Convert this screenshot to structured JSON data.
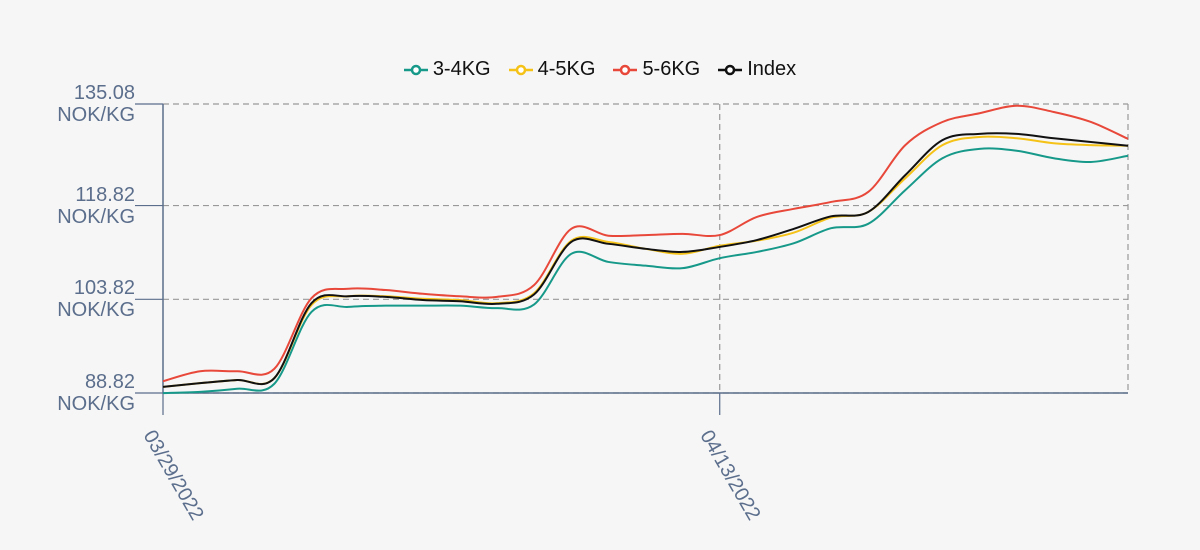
{
  "chart_data": {
    "type": "line",
    "x": [
      "03/29/2022",
      "03/30/2022",
      "03/31/2022",
      "04/01/2022",
      "04/02/2022",
      "04/03/2022",
      "04/04/2022",
      "04/05/2022",
      "04/06/2022",
      "04/07/2022",
      "04/08/2022",
      "04/09/2022",
      "04/10/2022",
      "04/11/2022",
      "04/12/2022",
      "04/13/2022",
      "04/14/2022",
      "04/15/2022",
      "04/16/2022",
      "04/17/2022",
      "04/18/2022",
      "04/19/2022",
      "04/20/2022",
      "04/21/2022",
      "04/22/2022",
      "04/23/2022",
      "04/24/2022"
    ],
    "series": [
      {
        "name": "3-4KG",
        "color": "#17998a",
        "values": [
          88.8,
          89.0,
          89.5,
          90.3,
          101.8,
          102.6,
          102.8,
          102.8,
          102.8,
          102.4,
          103.0,
          111.1,
          109.8,
          109.2,
          108.8,
          110.4,
          111.4,
          112.8,
          115.2,
          115.9,
          121.3,
          126.4,
          127.9,
          127.6,
          126.4,
          125.8,
          126.8
        ]
      },
      {
        "name": "4-5KG",
        "color": "#f5c218",
        "values": [
          89.8,
          90.4,
          90.9,
          91.2,
          102.9,
          104.3,
          104.3,
          103.9,
          103.7,
          103.2,
          104.8,
          113.2,
          113.0,
          111.9,
          111.1,
          112.4,
          113.2,
          114.5,
          116.9,
          117.8,
          123.2,
          128.5,
          129.8,
          129.6,
          128.8,
          128.5,
          128.4
        ]
      },
      {
        "name": "5-6KG",
        "color": "#e8483a",
        "values": [
          90.7,
          92.3,
          92.3,
          92.7,
          104.0,
          105.5,
          105.3,
          104.7,
          104.3,
          104.2,
          106.1,
          115.1,
          114.0,
          114.1,
          114.3,
          114.1,
          117.0,
          118.3,
          119.4,
          121.0,
          128.5,
          132.2,
          133.6,
          134.8,
          133.8,
          132.2,
          129.5
        ]
      },
      {
        "name": "Index",
        "color": "#111111",
        "values": [
          89.8,
          90.4,
          90.9,
          91.2,
          103.2,
          104.3,
          104.2,
          103.7,
          103.5,
          103.1,
          104.6,
          113.0,
          112.7,
          111.9,
          111.4,
          112.2,
          113.3,
          115.1,
          117.1,
          117.8,
          123.7,
          129.3,
          130.3,
          130.3,
          129.6,
          129.0,
          128.4
        ]
      }
    ],
    "xlim": [
      "03/29/2022",
      "04/24/2022"
    ],
    "xticks": [
      "03/29/2022",
      "04/13/2022"
    ],
    "ylim": [
      88.82,
      135.08
    ],
    "yticks": [
      {
        "value": 88.82,
        "label": "88.82 NOK/KG"
      },
      {
        "value": 103.82,
        "label": "103.82 NOK/KG"
      },
      {
        "value": 118.82,
        "label": "118.82 NOK/KG"
      },
      {
        "value": 135.08,
        "label": "135.08 NOK/KG"
      }
    ],
    "grid": true
  }
}
